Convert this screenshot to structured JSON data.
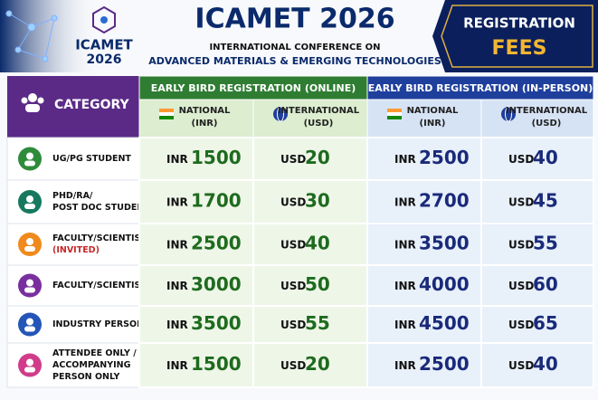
{
  "header": {
    "logo_text": "ICAMET",
    "logo_year": "2026",
    "title": "ICAMET 2026",
    "subtitle_line1": "INTERNATIONAL CONFERENCE ON",
    "subtitle_line2": "ADVANCED MATERIALS & EMERGING TECHNOLOGIES",
    "badge_line1": "REGISTRATION",
    "badge_line2": "FEES"
  },
  "table": {
    "category_header": "CATEGORY",
    "groups": [
      {
        "title": "EARLY BIRD REGISTRATION (ONLINE)",
        "columns": [
          {
            "label1": "NATIONAL",
            "label2": "(INR)"
          },
          {
            "label1": "INTERNATIONAL",
            "label2": "(USD)"
          }
        ]
      },
      {
        "title": "EARLY BIRD REGISTRATION (IN-PERSON)",
        "columns": [
          {
            "label1": "NATIONAL",
            "label2": "(INR)"
          },
          {
            "label1": "INTERNATIONAL",
            "label2": "(USD)"
          }
        ]
      }
    ],
    "rows": [
      {
        "category": [
          "UG/PG STUDENT"
        ],
        "fees": [
          {
            "currency": "INR",
            "amount": 1500
          },
          {
            "currency": "USD",
            "amount": 20
          },
          {
            "currency": "INR",
            "amount": 2500
          },
          {
            "currency": "USD",
            "amount": 40
          }
        ]
      },
      {
        "category": [
          "PHD/RA/",
          "POST DOC STUDENT"
        ],
        "fees": [
          {
            "currency": "INR",
            "amount": 1700
          },
          {
            "currency": "USD",
            "amount": 30
          },
          {
            "currency": "INR",
            "amount": 2700
          },
          {
            "currency": "USD",
            "amount": 45
          }
        ]
      },
      {
        "category": [
          "FACULTY/SCIENTIST"
        ],
        "note": "(INVITED)",
        "fees": [
          {
            "currency": "INR",
            "amount": 2500
          },
          {
            "currency": "USD",
            "amount": 40
          },
          {
            "currency": "INR",
            "amount": 3500
          },
          {
            "currency": "USD",
            "amount": 55
          }
        ]
      },
      {
        "category": [
          "FACULTY/SCIENTIST"
        ],
        "fees": [
          {
            "currency": "INR",
            "amount": 3000
          },
          {
            "currency": "USD",
            "amount": 50
          },
          {
            "currency": "INR",
            "amount": 4000
          },
          {
            "currency": "USD",
            "amount": 60
          }
        ]
      },
      {
        "category": [
          "INDUSTRY PERSON"
        ],
        "fees": [
          {
            "currency": "INR",
            "amount": 3500
          },
          {
            "currency": "USD",
            "amount": 55
          },
          {
            "currency": "INR",
            "amount": 4500
          },
          {
            "currency": "USD",
            "amount": 65
          }
        ]
      },
      {
        "category": [
          "ATTENDEE ONLY /",
          "ACCOMPANYING",
          "PERSON ONLY"
        ],
        "fees": [
          {
            "currency": "INR",
            "amount": 1500
          },
          {
            "currency": "USD",
            "amount": 20
          },
          {
            "currency": "INR",
            "amount": 2500
          },
          {
            "currency": "USD",
            "amount": 40
          }
        ]
      }
    ]
  }
}
